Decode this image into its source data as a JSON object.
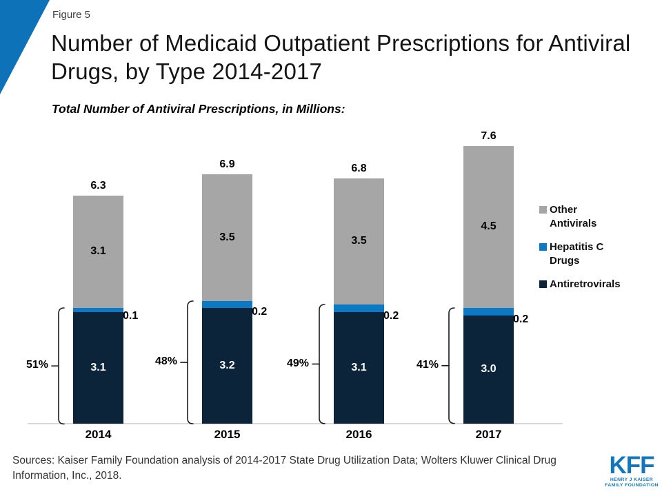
{
  "figure_label": "Figure 5",
  "title": "Number of Medicaid Outpatient Prescriptions for Antiviral Drugs, by Type 2014-2017",
  "subtitle": "Total Number of Antiviral Prescriptions, in Millions:",
  "source_note": "Sources: Kaiser Family Foundation analysis of 2014-2017 State Drug Utilization Data; Wolters Kluwer Clinical Drug Information, Inc., 2018.",
  "logo": {
    "text": "KFF",
    "sub_line1": "HENRY J KAISER",
    "sub_line2": "FAMILY FOUNDATION"
  },
  "colors": {
    "accent_blue": "#0e72b8",
    "bar_navy": "#0c2439",
    "bar_blue": "#0b79c4",
    "bar_gray": "#a6a6a6",
    "axis_line": "#d9d9d9",
    "logo_blue": "#1476bb"
  },
  "chart_data": {
    "type": "bar",
    "stacked": true,
    "title": "Total Number of Antiviral Prescriptions, in Millions:",
    "categories": [
      "2014",
      "2015",
      "2016",
      "2017"
    ],
    "series": [
      {
        "name": "Antiretrovirals",
        "color_key": "bar_navy",
        "values": [
          3.1,
          3.2,
          3.1,
          3.0
        ]
      },
      {
        "name": "Hepatitis C Drugs",
        "color_key": "bar_blue",
        "values": [
          0.1,
          0.2,
          0.2,
          0.2
        ]
      },
      {
        "name": "Other Antivirals",
        "color_key": "bar_gray",
        "values": [
          3.1,
          3.5,
          3.5,
          4.5
        ]
      }
    ],
    "totals": [
      6.3,
      6.9,
      6.8,
      7.6
    ],
    "bracket_share_labels": [
      "51%",
      "48%",
      "49%",
      "41%"
    ],
    "bracket_spans": "Antiretrovirals + Hepatitis C Drugs share of total",
    "legend": [
      {
        "label": "Other Antivirals",
        "color_key": "bar_gray"
      },
      {
        "label": "Hepatitis C Drugs",
        "color_key": "bar_blue"
      },
      {
        "label": "Antiretrovirals",
        "color_key": "bar_navy"
      }
    ],
    "legend_position": "right",
    "ylim": [
      0,
      8
    ],
    "value_unit": "millions",
    "grid": false
  }
}
